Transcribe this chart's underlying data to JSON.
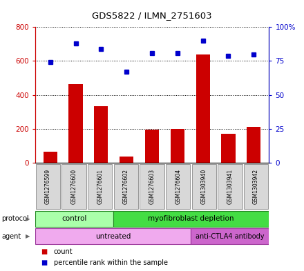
{
  "title": "GDS5822 / ILMN_2751603",
  "samples": [
    "GSM1276599",
    "GSM1276600",
    "GSM1276601",
    "GSM1276602",
    "GSM1276603",
    "GSM1276604",
    "GSM1303940",
    "GSM1303941",
    "GSM1303942"
  ],
  "counts": [
    65,
    465,
    335,
    35,
    195,
    200,
    640,
    170,
    210
  ],
  "percentile_ranks": [
    74,
    88,
    84,
    67,
    81,
    81,
    90,
    79,
    80
  ],
  "left_ylim": [
    0,
    800
  ],
  "right_ylim": [
    0,
    100
  ],
  "left_yticks": [
    0,
    200,
    400,
    600,
    800
  ],
  "right_yticks": [
    0,
    25,
    50,
    75,
    100
  ],
  "right_yticklabels": [
    "0",
    "25",
    "50",
    "75",
    "100%"
  ],
  "left_yticklabels": [
    "0",
    "200",
    "400",
    "600",
    "800"
  ],
  "bar_color": "#cc0000",
  "dot_color": "#0000cc",
  "protocol_labels": [
    "control",
    "myofibroblast depletion"
  ],
  "protocol_light_color": "#aaffaa",
  "protocol_dark_color": "#44dd44",
  "agent_labels": [
    "untreated",
    "anti-CTLA4 antibody"
  ],
  "agent_light_color": "#f0aaee",
  "agent_dark_color": "#cc66cc",
  "plot_bg": "#ffffff",
  "label_color_red": "#cc0000",
  "label_color_blue": "#0000cc",
  "ctrl_count": 3,
  "untreated_count": 6,
  "total_count": 9
}
